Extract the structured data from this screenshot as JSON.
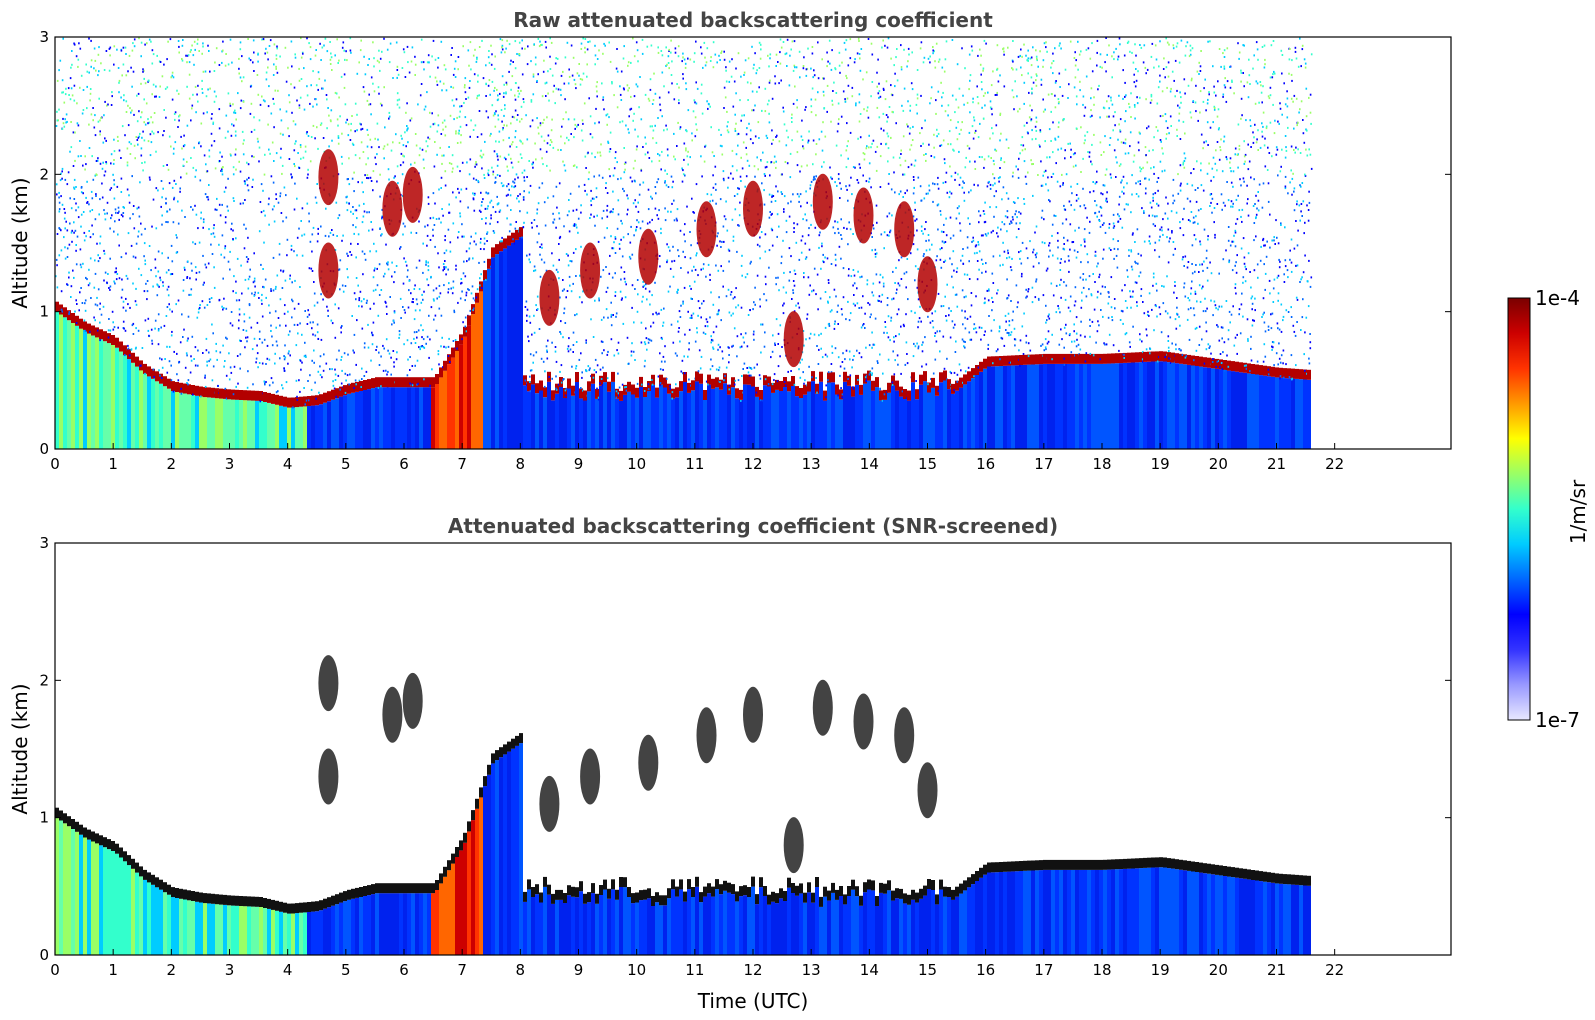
{
  "chart_data": [
    {
      "type": "heatmap",
      "title": "Raw attenuated backscattering coefficient",
      "xlabel": "",
      "ylabel": "Altitude (km)",
      "xlim": [
        0,
        24
      ],
      "ylim": [
        0,
        3
      ],
      "xticks": [
        "0",
        "1",
        "2",
        "3",
        "4",
        "5",
        "6",
        "7",
        "8",
        "9",
        "10",
        "11",
        "12",
        "13",
        "14",
        "15",
        "16",
        "17",
        "18",
        "19",
        "20",
        "21",
        "22"
      ],
      "yticks": [
        "0",
        "1",
        "2",
        "3"
      ],
      "data_end_time": 21.65,
      "boundary_layer_top_km": [
        [
          0,
          1.0
        ],
        [
          0.5,
          0.85
        ],
        [
          1,
          0.75
        ],
        [
          1.5,
          0.55
        ],
        [
          2,
          0.42
        ],
        [
          2.5,
          0.38
        ],
        [
          3,
          0.36
        ],
        [
          3.5,
          0.35
        ],
        [
          4,
          0.3
        ],
        [
          4.5,
          0.32
        ],
        [
          5,
          0.4
        ],
        [
          5.5,
          0.45
        ],
        [
          6,
          0.45
        ],
        [
          6.5,
          0.45
        ],
        [
          7,
          0.8
        ],
        [
          7.5,
          1.4
        ],
        [
          8,
          1.55
        ],
        [
          15.4,
          0.4
        ],
        [
          16,
          0.6
        ],
        [
          17,
          0.62
        ],
        [
          18,
          0.62
        ],
        [
          19,
          0.64
        ],
        [
          20,
          0.58
        ],
        [
          21,
          0.52
        ],
        [
          21.65,
          0.5
        ]
      ],
      "cloud_patches": [
        [
          4.7,
          1.98
        ],
        [
          5.8,
          1.75
        ],
        [
          6.15,
          1.85
        ],
        [
          4.7,
          1.3
        ],
        [
          8.5,
          1.1
        ],
        [
          9.2,
          1.3
        ],
        [
          10.2,
          1.4
        ],
        [
          11.2,
          1.6
        ],
        [
          12.0,
          1.75
        ],
        [
          13.2,
          1.8
        ],
        [
          13.9,
          1.7
        ],
        [
          14.6,
          1.6
        ],
        [
          15.0,
          1.2
        ],
        [
          12.7,
          0.8
        ]
      ]
    },
    {
      "type": "heatmap",
      "title": "Attenuated backscattering coefficient (SNR-screened)",
      "xlabel": "Time (UTC)",
      "ylabel": "Altitude (km)",
      "xlim": [
        0,
        24
      ],
      "ylim": [
        0,
        3
      ],
      "xticks": [
        "0",
        "1",
        "2",
        "3",
        "4",
        "5",
        "6",
        "7",
        "8",
        "9",
        "10",
        "11",
        "12",
        "13",
        "14",
        "15",
        "16",
        "17",
        "18",
        "19",
        "20",
        "21",
        "22"
      ],
      "yticks": [
        "0",
        "1",
        "2",
        "3"
      ],
      "data_end_time": 21.65
    }
  ],
  "colorbar": {
    "label": "1/m/sr",
    "max_label": "1e-4",
    "min_label": "1e-7",
    "colors": [
      "#e8e8ff",
      "#9999ff",
      "#3333ff",
      "#0000ff",
      "#0066ff",
      "#00ccff",
      "#33ffcc",
      "#99ff66",
      "#ffff00",
      "#ff9900",
      "#ff3300",
      "#cc0000",
      "#7a0000"
    ]
  }
}
